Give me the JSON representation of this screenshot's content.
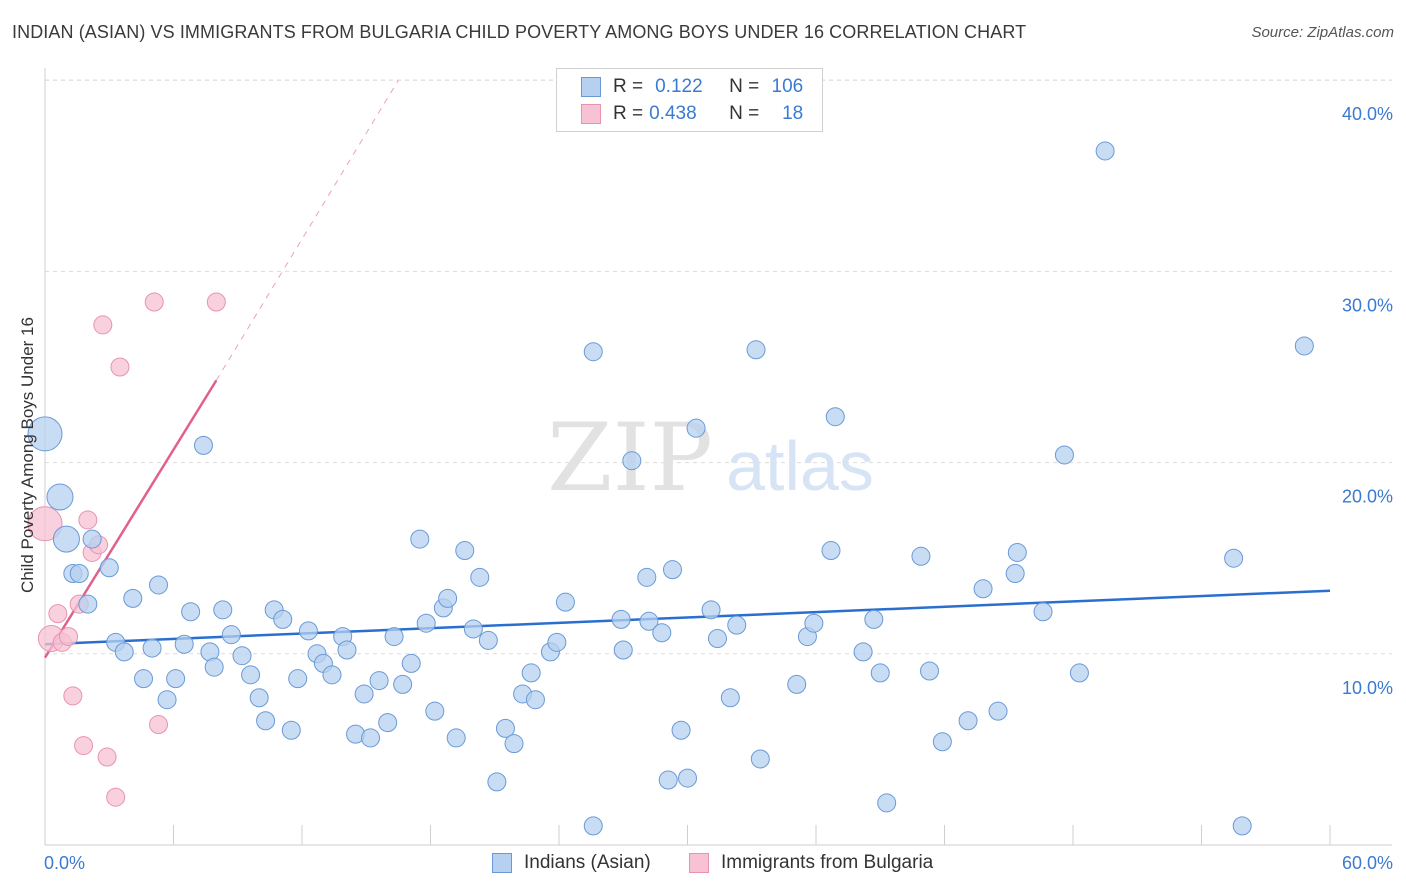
{
  "header": {
    "title": "INDIAN (ASIAN) VS IMMIGRANTS FROM BULGARIA CHILD POVERTY AMONG BOYS UNDER 16 CORRELATION CHART",
    "source": "Source: ZipAtlas.com"
  },
  "watermark": {
    "zip": "ZIP",
    "atlas": "atlas"
  },
  "legend_top": {
    "rows": [
      {
        "r_label": "R =",
        "r_value": "0.122",
        "n_label": "N =",
        "n_value": "106"
      },
      {
        "r_label": "R =",
        "r_value": "0.438",
        "n_label": "N =",
        "n_value": "18"
      }
    ]
  },
  "legend_bottom": {
    "items": [
      {
        "label": "Indians (Asian)"
      },
      {
        "label": "Immigrants from Bulgaria"
      }
    ]
  },
  "colors": {
    "blue_fill": "#b5d0f0",
    "blue_stroke": "#6a9ad6",
    "blue_line": "#2a6fcf",
    "pink_fill": "#f7c2d3",
    "pink_stroke": "#e893b0",
    "pink_line": "#e0608e",
    "axis_text": "#3b7ad1",
    "grid": "#dcdcdc"
  },
  "chart_data": {
    "type": "scatter",
    "title": "INDIAN (ASIAN) VS IMMIGRANTS FROM BULGARIA CHILD POVERTY AMONG BOYS UNDER 16 CORRELATION CHART",
    "xlabel": "",
    "ylabel": "Child Poverty Among Boys Under 16",
    "xlim": [
      0,
      60
    ],
    "ylim": [
      0,
      40
    ],
    "x_tick_labels": [
      "0.0%",
      "60.0%"
    ],
    "y_ticks": [
      10,
      20,
      30,
      40
    ],
    "y_tick_labels": [
      "10.0%",
      "20.0%",
      "30.0%",
      "40.0%"
    ],
    "grid": true,
    "series": [
      {
        "name": "Indians (Asian)",
        "R": 0.122,
        "N": 106,
        "trend": {
          "x": [
            0,
            60
          ],
          "y": [
            10.5,
            13.3
          ],
          "style": "solid",
          "extended": false
        },
        "points": [
          {
            "x": 0.0,
            "y": 21.5,
            "s": 3
          },
          {
            "x": 0.7,
            "y": 18.2,
            "s": 2
          },
          {
            "x": 1.0,
            "y": 16.0,
            "s": 2
          },
          {
            "x": 1.3,
            "y": 14.2,
            "s": 1
          },
          {
            "x": 1.6,
            "y": 14.2,
            "s": 1
          },
          {
            "x": 2.2,
            "y": 16.0,
            "s": 1
          },
          {
            "x": 2.0,
            "y": 12.6,
            "s": 1
          },
          {
            "x": 3.0,
            "y": 14.5,
            "s": 1
          },
          {
            "x": 3.3,
            "y": 10.6,
            "s": 1
          },
          {
            "x": 3.7,
            "y": 10.1,
            "s": 1
          },
          {
            "x": 4.1,
            "y": 12.9,
            "s": 1
          },
          {
            "x": 4.6,
            "y": 8.7,
            "s": 1
          },
          {
            "x": 5.0,
            "y": 10.3,
            "s": 1
          },
          {
            "x": 5.3,
            "y": 13.6,
            "s": 1
          },
          {
            "x": 5.7,
            "y": 7.6,
            "s": 1
          },
          {
            "x": 6.1,
            "y": 8.7,
            "s": 1
          },
          {
            "x": 6.5,
            "y": 10.5,
            "s": 1
          },
          {
            "x": 6.8,
            "y": 12.2,
            "s": 1
          },
          {
            "x": 7.4,
            "y": 20.9,
            "s": 1
          },
          {
            "x": 7.7,
            "y": 10.1,
            "s": 1
          },
          {
            "x": 7.9,
            "y": 9.3,
            "s": 1
          },
          {
            "x": 8.3,
            "y": 12.3,
            "s": 1
          },
          {
            "x": 8.7,
            "y": 11.0,
            "s": 1
          },
          {
            "x": 9.2,
            "y": 9.9,
            "s": 1
          },
          {
            "x": 9.6,
            "y": 8.9,
            "s": 1
          },
          {
            "x": 10.0,
            "y": 7.7,
            "s": 1
          },
          {
            "x": 10.3,
            "y": 6.5,
            "s": 1
          },
          {
            "x": 10.7,
            "y": 12.3,
            "s": 1
          },
          {
            "x": 11.1,
            "y": 11.8,
            "s": 1
          },
          {
            "x": 11.5,
            "y": 6.0,
            "s": 1
          },
          {
            "x": 11.8,
            "y": 8.7,
            "s": 1
          },
          {
            "x": 12.3,
            "y": 11.2,
            "s": 1
          },
          {
            "x": 12.7,
            "y": 10.0,
            "s": 1
          },
          {
            "x": 13.0,
            "y": 9.5,
            "s": 1
          },
          {
            "x": 13.4,
            "y": 8.9,
            "s": 1
          },
          {
            "x": 13.9,
            "y": 10.9,
            "s": 1
          },
          {
            "x": 14.1,
            "y": 10.2,
            "s": 1
          },
          {
            "x": 14.5,
            "y": 5.8,
            "s": 1
          },
          {
            "x": 14.9,
            "y": 7.9,
            "s": 1
          },
          {
            "x": 15.2,
            "y": 5.6,
            "s": 1
          },
          {
            "x": 15.6,
            "y": 8.6,
            "s": 1
          },
          {
            "x": 16.0,
            "y": 6.4,
            "s": 1
          },
          {
            "x": 16.3,
            "y": 10.9,
            "s": 1
          },
          {
            "x": 16.7,
            "y": 8.4,
            "s": 1
          },
          {
            "x": 17.1,
            "y": 9.5,
            "s": 1
          },
          {
            "x": 17.5,
            "y": 16.0,
            "s": 1
          },
          {
            "x": 17.8,
            "y": 11.6,
            "s": 1
          },
          {
            "x": 18.2,
            "y": 7.0,
            "s": 1
          },
          {
            "x": 18.6,
            "y": 12.4,
            "s": 1
          },
          {
            "x": 18.8,
            "y": 12.9,
            "s": 1
          },
          {
            "x": 19.2,
            "y": 5.6,
            "s": 1
          },
          {
            "x": 19.6,
            "y": 15.4,
            "s": 1
          },
          {
            "x": 20.0,
            "y": 11.3,
            "s": 1
          },
          {
            "x": 20.3,
            "y": 14.0,
            "s": 1
          },
          {
            "x": 20.7,
            "y": 10.7,
            "s": 1
          },
          {
            "x": 21.1,
            "y": 3.3,
            "s": 1
          },
          {
            "x": 21.5,
            "y": 6.1,
            "s": 1
          },
          {
            "x": 21.9,
            "y": 5.3,
            "s": 1
          },
          {
            "x": 22.3,
            "y": 7.9,
            "s": 1
          },
          {
            "x": 22.7,
            "y": 9.0,
            "s": 1
          },
          {
            "x": 22.9,
            "y": 7.6,
            "s": 1
          },
          {
            "x": 23.6,
            "y": 10.1,
            "s": 1
          },
          {
            "x": 23.9,
            "y": 10.6,
            "s": 1
          },
          {
            "x": 24.3,
            "y": 12.7,
            "s": 1
          },
          {
            "x": 25.6,
            "y": 25.8,
            "s": 1
          },
          {
            "x": 25.6,
            "y": 1.0,
            "s": 1
          },
          {
            "x": 26.9,
            "y": 11.8,
            "s": 1
          },
          {
            "x": 27.0,
            "y": 10.2,
            "s": 1
          },
          {
            "x": 27.4,
            "y": 20.1,
            "s": 1
          },
          {
            "x": 28.1,
            "y": 14.0,
            "s": 1
          },
          {
            "x": 28.2,
            "y": 11.7,
            "s": 1
          },
          {
            "x": 28.8,
            "y": 11.1,
            "s": 1
          },
          {
            "x": 29.3,
            "y": 14.4,
            "s": 1
          },
          {
            "x": 29.1,
            "y": 3.4,
            "s": 1
          },
          {
            "x": 29.7,
            "y": 6.0,
            "s": 1
          },
          {
            "x": 30.0,
            "y": 3.5,
            "s": 1
          },
          {
            "x": 30.4,
            "y": 21.8,
            "s": 1
          },
          {
            "x": 31.1,
            "y": 12.3,
            "s": 1
          },
          {
            "x": 31.4,
            "y": 10.8,
            "s": 1
          },
          {
            "x": 32.0,
            "y": 7.7,
            "s": 1
          },
          {
            "x": 32.3,
            "y": 11.5,
            "s": 1
          },
          {
            "x": 33.2,
            "y": 25.9,
            "s": 1
          },
          {
            "x": 33.4,
            "y": 4.5,
            "s": 1
          },
          {
            "x": 35.1,
            "y": 8.4,
            "s": 1
          },
          {
            "x": 35.6,
            "y": 10.9,
            "s": 1
          },
          {
            "x": 35.9,
            "y": 11.6,
            "s": 1
          },
          {
            "x": 36.7,
            "y": 15.4,
            "s": 1
          },
          {
            "x": 36.9,
            "y": 22.4,
            "s": 1
          },
          {
            "x": 38.2,
            "y": 10.1,
            "s": 1
          },
          {
            "x": 38.7,
            "y": 11.8,
            "s": 1
          },
          {
            "x": 39.0,
            "y": 9.0,
            "s": 1
          },
          {
            "x": 39.3,
            "y": 2.2,
            "s": 1
          },
          {
            "x": 40.9,
            "y": 15.1,
            "s": 1
          },
          {
            "x": 41.3,
            "y": 9.1,
            "s": 1
          },
          {
            "x": 41.9,
            "y": 5.4,
            "s": 1
          },
          {
            "x": 43.1,
            "y": 6.5,
            "s": 1
          },
          {
            "x": 43.8,
            "y": 13.4,
            "s": 1
          },
          {
            "x": 44.5,
            "y": 7.0,
            "s": 1
          },
          {
            "x": 45.4,
            "y": 15.3,
            "s": 1
          },
          {
            "x": 45.3,
            "y": 14.2,
            "s": 1
          },
          {
            "x": 46.6,
            "y": 12.2,
            "s": 1
          },
          {
            "x": 47.6,
            "y": 20.4,
            "s": 1
          },
          {
            "x": 48.3,
            "y": 9.0,
            "s": 1
          },
          {
            "x": 49.5,
            "y": 36.3,
            "s": 1
          },
          {
            "x": 55.5,
            "y": 15.0,
            "s": 1
          },
          {
            "x": 55.9,
            "y": 1.0,
            "s": 1
          },
          {
            "x": 58.8,
            "y": 26.1,
            "s": 1
          }
        ]
      },
      {
        "name": "Immigrants from Bulgaria",
        "R": 0.438,
        "N": 18,
        "trend": {
          "x": [
            0,
            8
          ],
          "y": [
            9.8,
            24.3
          ],
          "style": "solid",
          "extended_to": [
            16.5,
            40.0
          ],
          "extended_style": "dashed"
        },
        "points": [
          {
            "x": 0.0,
            "y": 16.8,
            "s": 3
          },
          {
            "x": 0.3,
            "y": 10.8,
            "s": 2
          },
          {
            "x": 0.6,
            "y": 12.1,
            "s": 1
          },
          {
            "x": 0.8,
            "y": 10.6,
            "s": 1
          },
          {
            "x": 1.1,
            "y": 10.9,
            "s": 1
          },
          {
            "x": 1.3,
            "y": 7.8,
            "s": 1
          },
          {
            "x": 1.6,
            "y": 12.6,
            "s": 1
          },
          {
            "x": 1.8,
            "y": 5.2,
            "s": 1
          },
          {
            "x": 2.0,
            "y": 17.0,
            "s": 1
          },
          {
            "x": 2.2,
            "y": 15.3,
            "s": 1
          },
          {
            "x": 2.5,
            "y": 15.7,
            "s": 1
          },
          {
            "x": 2.7,
            "y": 27.2,
            "s": 1
          },
          {
            "x": 2.9,
            "y": 4.6,
            "s": 1
          },
          {
            "x": 3.3,
            "y": 2.5,
            "s": 1
          },
          {
            "x": 3.5,
            "y": 25.0,
            "s": 1
          },
          {
            "x": 5.1,
            "y": 28.4,
            "s": 1
          },
          {
            "x": 5.3,
            "y": 6.3,
            "s": 1
          },
          {
            "x": 8.0,
            "y": 28.4,
            "s": 1
          }
        ]
      }
    ]
  }
}
